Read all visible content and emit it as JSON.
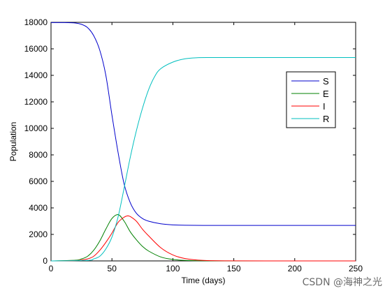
{
  "chart_data": {
    "type": "line",
    "xlabel": "Time (days)",
    "ylabel": "Population",
    "xlim": [
      0,
      250
    ],
    "ylim": [
      0,
      18000
    ],
    "xticks": [
      0,
      50,
      100,
      150,
      200,
      250
    ],
    "yticks": [
      0,
      2000,
      4000,
      6000,
      8000,
      10000,
      12000,
      14000,
      16000,
      18000
    ],
    "grid": false,
    "legend_position": "top-right",
    "series": [
      {
        "name": "S",
        "color": "#0000cc",
        "x": [
          0,
          10,
          20,
          25,
          30,
          35,
          40,
          45,
          50,
          55,
          60,
          65,
          70,
          75,
          80,
          90,
          100,
          110,
          125,
          150,
          200,
          250
        ],
        "y": [
          17980,
          17980,
          17950,
          17850,
          17600,
          17000,
          15900,
          14000,
          11000,
          8200,
          5800,
          4400,
          3600,
          3200,
          3000,
          2800,
          2720,
          2690,
          2680,
          2680,
          2680,
          2680
        ]
      },
      {
        "name": "E",
        "color": "#008000",
        "x": [
          0,
          20,
          25,
          30,
          35,
          40,
          45,
          50,
          55,
          60,
          65,
          70,
          75,
          80,
          90,
          100,
          110,
          125,
          150,
          200,
          250
        ],
        "y": [
          0,
          50,
          150,
          350,
          800,
          1500,
          2400,
          3200,
          3500,
          3000,
          2200,
          1600,
          1100,
          750,
          300,
          110,
          40,
          10,
          0,
          0,
          0
        ]
      },
      {
        "name": "I",
        "color": "#ff0000",
        "x": [
          0,
          20,
          25,
          30,
          35,
          40,
          45,
          50,
          55,
          60,
          63,
          65,
          70,
          75,
          80,
          90,
          100,
          110,
          125,
          150,
          200,
          250
        ],
        "y": [
          0,
          20,
          60,
          150,
          350,
          800,
          1400,
          2100,
          2900,
          3300,
          3400,
          3350,
          3000,
          2400,
          1900,
          1000,
          450,
          180,
          40,
          5,
          0,
          0
        ]
      },
      {
        "name": "R",
        "color": "#00bfbf",
        "x": [
          0,
          30,
          35,
          40,
          45,
          50,
          55,
          60,
          65,
          70,
          75,
          80,
          85,
          90,
          100,
          110,
          120,
          130,
          150,
          200,
          250
        ],
        "y": [
          0,
          40,
          150,
          350,
          900,
          1800,
          3300,
          5500,
          7800,
          9800,
          11500,
          12900,
          13900,
          14500,
          15000,
          15250,
          15330,
          15340,
          15340,
          15340,
          15340
        ]
      }
    ]
  },
  "watermark": "CSDN @海神之光"
}
